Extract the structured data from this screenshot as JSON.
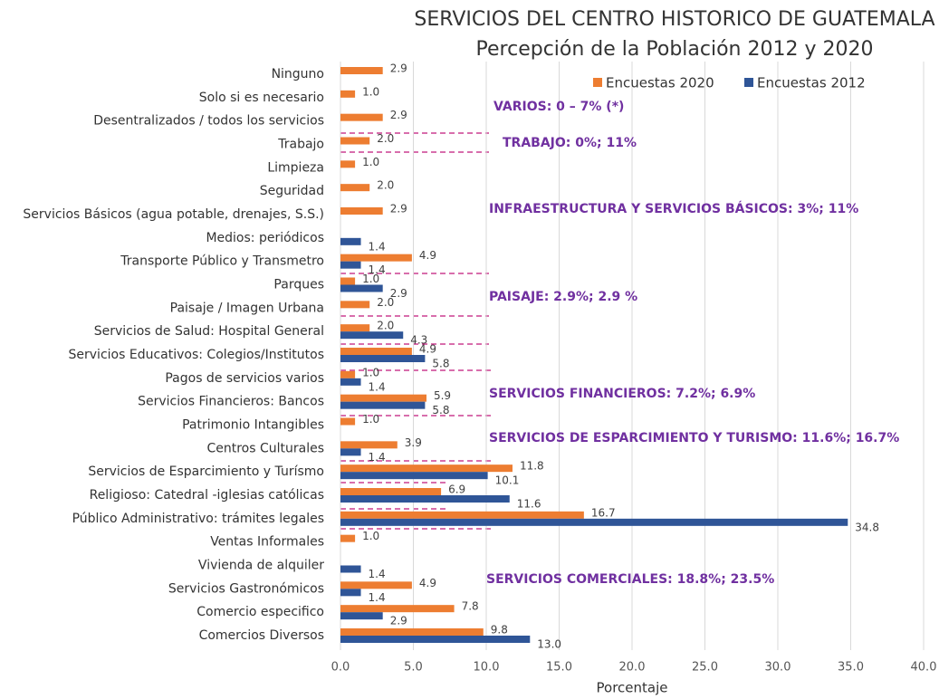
{
  "chart_data": {
    "type": "hbar",
    "title": "SERVICIOS DEL CENTRO HISTORICO DE GUATEMALA",
    "subtitle": "Percepción de la Población 2012 y 2020",
    "x_label": "Porcentaje",
    "categories": [
      "Ninguno",
      "Solo si es necesario",
      "Desentralizados / todos los servicios",
      "Trabajo",
      "Limpieza",
      "Seguridad",
      "Servicios Básicos (agua potable, drenajes, S.S.)",
      "Medios: periódicos",
      "Transporte Público y Transmetro",
      "Parques",
      "Paisaje / Imagen Urbana",
      "Servicios de Salud: Hospital General",
      "Servicios Educativos: Colegios/Institutos",
      "Pagos de servicios varios",
      "Servicios Financieros: Bancos",
      "Patrimonio Intangibles",
      "Centros Culturales",
      "Servicios de Esparcimiento y Turísmo",
      "Religioso: Catedral -iglesias católicas",
      "Público Administrativo: trámites legales",
      "Ventas Informales",
      "Vivienda de alquiler",
      "Servicios Gastronómicos",
      "Comercio especifico",
      "Comercios Diversos"
    ],
    "series": [
      {
        "name": "Encuestas 2020",
        "color": "#ed7d31",
        "values": [
          2.9,
          1.0,
          2.9,
          2.0,
          1.0,
          2.0,
          2.9,
          null,
          4.9,
          1.0,
          2.0,
          2.0,
          4.9,
          1.0,
          5.9,
          1.0,
          3.9,
          11.8,
          6.9,
          16.7,
          1.0,
          null,
          4.9,
          7.8,
          9.8
        ],
        "value_labels": [
          "2.9",
          "1.0",
          "2.9",
          "2.0",
          "1.0",
          "2.0",
          "2.9",
          null,
          "4.9",
          "1.0",
          "2.0",
          "2.0",
          "4.9",
          "1.0",
          "5.9",
          "1.0",
          "3.9",
          "11.8",
          "6.9",
          "16.7",
          "1.0",
          null,
          "4.9",
          "7.8",
          "9.8"
        ]
      },
      {
        "name": "Encuestas 2012",
        "color": "#2f5597",
        "values": [
          null,
          null,
          null,
          null,
          null,
          null,
          null,
          1.4,
          1.4,
          2.9,
          null,
          4.3,
          5.8,
          1.4,
          5.8,
          null,
          1.4,
          10.1,
          11.6,
          34.8,
          null,
          1.4,
          1.4,
          2.9,
          13.0
        ],
        "value_labels": [
          null,
          null,
          null,
          null,
          null,
          null,
          null,
          "1.4",
          "1.4",
          "2.9",
          null,
          "4.3",
          "5.8",
          "1.4",
          "5.8",
          null,
          "1.4",
          "10.1",
          "11.6",
          "34.8",
          null,
          "1.4",
          "1.4",
          "2.9",
          "13.0"
        ]
      }
    ],
    "xlim": [
      0,
      40
    ],
    "xticks": [
      {
        "value": 0,
        "label": "0.0"
      },
      {
        "value": 5,
        "label": "5.0"
      },
      {
        "value": 10,
        "label": "10.0"
      },
      {
        "value": 15,
        "label": "15.0"
      },
      {
        "value": 20,
        "label": "20.0"
      },
      {
        "value": 25,
        "label": "25.0"
      },
      {
        "value": 30,
        "label": "30.0"
      },
      {
        "value": 35,
        "label": "35.0"
      },
      {
        "value": 40,
        "label": "40.0"
      }
    ],
    "grid": true,
    "legend": "top-right",
    "annotations": [
      "VARIOS: 0 – 7%  (*)",
      "TRABAJO: 0%; 11%",
      "INFRAESTRUCTURA Y SERVICIOS BÁSICOS: 3%; 11%",
      "PAISAJE: 2.9%; 2.9 %",
      "SERVICIOS FINANCIEROS: 7.2%; 6.9%",
      "SERVICIOS DE ESPARCIMIENTO Y TURISMO: 11.6%;  16.7%",
      "SERVICIOS COMERCIALES: 18.8%; 23.5%"
    ]
  }
}
